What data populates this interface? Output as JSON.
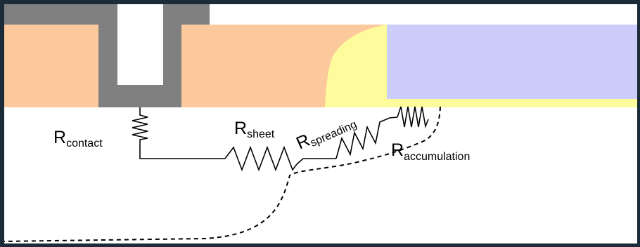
{
  "diagram": {
    "labels": {
      "contact": {
        "main": "R",
        "sub": "contact"
      },
      "sheet": {
        "main": "R",
        "sub": "sheet"
      },
      "spreading": {
        "main": "R",
        "sub": "spreading"
      },
      "accumulation": {
        "main": "R",
        "sub": "accumulation"
      }
    },
    "colors": {
      "frame": "#1b2b38",
      "metal": "#808080",
      "silicide": "#fbc99b",
      "extension": "#fdfb9c",
      "spacer": "#cccdfb",
      "wire": "#000000"
    }
  }
}
